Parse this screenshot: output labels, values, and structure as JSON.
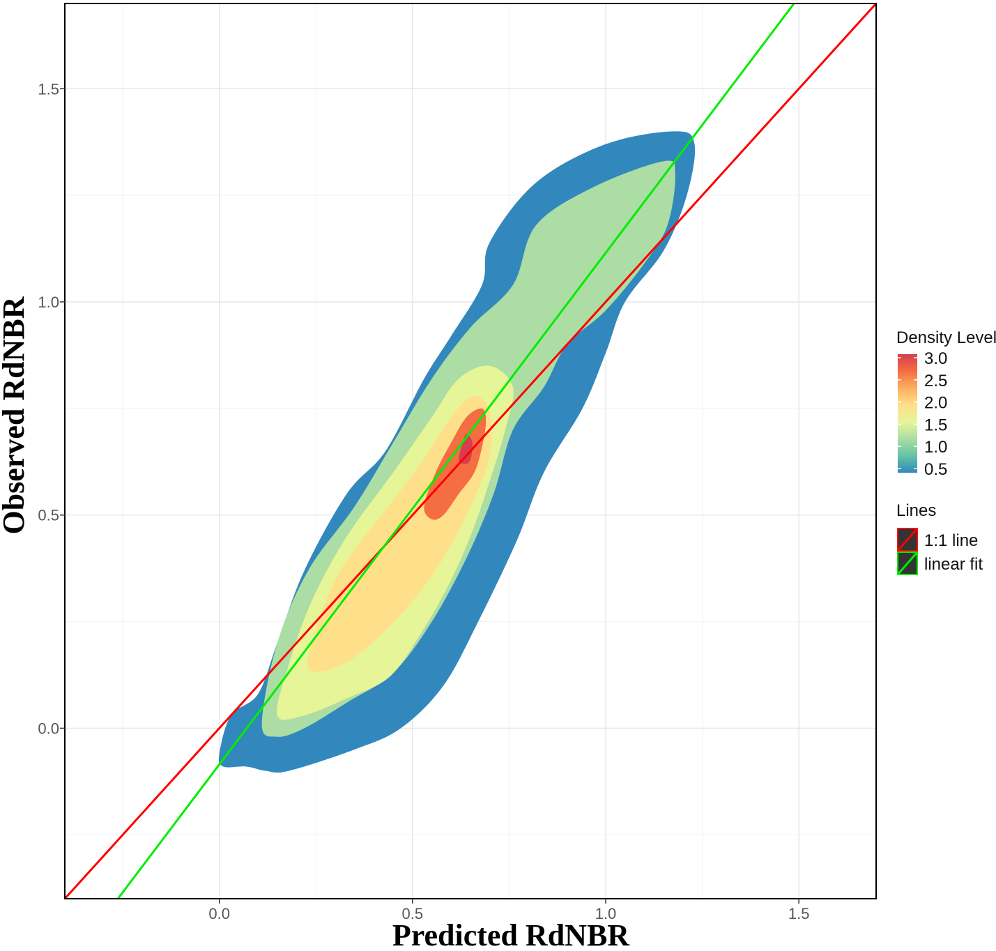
{
  "chart_data": {
    "type": "density-contour",
    "title": "",
    "xlabel": "Predicted RdNBR",
    "ylabel": "Observed RdNBR",
    "xlim": [
      -0.4,
      1.7
    ],
    "ylim": [
      -0.4,
      1.7
    ],
    "x_ticks": [
      0.0,
      0.5,
      1.0,
      1.5
    ],
    "y_ticks": [
      0.0,
      0.5,
      1.0,
      1.5
    ],
    "x_tick_labels": [
      "0.0",
      "0.5",
      "1.0",
      "1.5"
    ],
    "y_tick_labels": [
      "0.0",
      "0.5",
      "1.0",
      "1.5"
    ],
    "grid": true,
    "density_legend": {
      "title": "Density Level",
      "placement": "right",
      "levels": [
        3.0,
        2.5,
        2.0,
        1.5,
        1.0,
        0.5
      ],
      "labels": [
        "3.0",
        "2.5",
        "2.0",
        "1.5",
        "1.0",
        "0.5"
      ],
      "colors": [
        "#d53e4f",
        "#f46d43",
        "#fdae61",
        "#fee08b",
        "#e6f598",
        "#abdda4",
        "#66c2a5",
        "#3288bd"
      ]
    },
    "contour_fills": {
      "level_0": "#3288bd",
      "level_1": "#abdda4",
      "level_2": "#e6f598",
      "level_3": "#fee08b",
      "level_4": "#f46d43",
      "level_5": "#d53e4f"
    },
    "lines_legend": {
      "title": "Lines",
      "placement": "right",
      "items": [
        {
          "label": "1:1 line",
          "color": "#ff0000"
        },
        {
          "label": "linear fit",
          "color": "#00ee00"
        }
      ]
    },
    "series": [
      {
        "name": "1:1 line",
        "slope": 1.0,
        "intercept": 0.0,
        "color": "#ff0000"
      },
      {
        "name": "linear fit",
        "slope": 1.2,
        "intercept": -0.085,
        "color": "#00ee00"
      }
    ],
    "contours": [
      {
        "level": 0.5,
        "color": "#3288bd",
        "points": [
          [
            0.0,
            -0.06
          ],
          [
            0.03,
            0.03
          ],
          [
            0.1,
            0.08
          ],
          [
            0.15,
            0.2
          ],
          [
            0.22,
            0.37
          ],
          [
            0.33,
            0.55
          ],
          [
            0.43,
            0.65
          ],
          [
            0.53,
            0.82
          ],
          [
            0.6,
            0.92
          ],
          [
            0.68,
            1.04
          ],
          [
            0.7,
            1.14
          ],
          [
            0.82,
            1.28
          ],
          [
            1.0,
            1.37
          ],
          [
            1.18,
            1.4
          ],
          [
            1.23,
            1.37
          ],
          [
            1.21,
            1.25
          ],
          [
            1.15,
            1.12
          ],
          [
            1.05,
            1.0
          ],
          [
            1.0,
            0.88
          ],
          [
            0.94,
            0.75
          ],
          [
            0.84,
            0.6
          ],
          [
            0.77,
            0.44
          ],
          [
            0.67,
            0.25
          ],
          [
            0.58,
            0.1
          ],
          [
            0.47,
            0.0
          ],
          [
            0.35,
            -0.05
          ],
          [
            0.18,
            -0.1
          ],
          [
            0.12,
            -0.1
          ],
          [
            0.07,
            -0.09
          ],
          [
            0.01,
            -0.09
          ]
        ]
      },
      {
        "level": 1.0,
        "color": "#abdda4",
        "points": [
          [
            0.11,
            0.01
          ],
          [
            0.15,
            0.2
          ],
          [
            0.23,
            0.37
          ],
          [
            0.35,
            0.52
          ],
          [
            0.45,
            0.67
          ],
          [
            0.55,
            0.82
          ],
          [
            0.65,
            0.94
          ],
          [
            0.76,
            1.04
          ],
          [
            0.82,
            1.18
          ],
          [
            0.97,
            1.27
          ],
          [
            1.15,
            1.33
          ],
          [
            1.18,
            1.3
          ],
          [
            1.16,
            1.18
          ],
          [
            1.1,
            1.09
          ],
          [
            1.0,
            0.98
          ],
          [
            0.9,
            0.9
          ],
          [
            0.84,
            0.8
          ],
          [
            0.76,
            0.7
          ],
          [
            0.71,
            0.55
          ],
          [
            0.64,
            0.4
          ],
          [
            0.55,
            0.25
          ],
          [
            0.45,
            0.13
          ],
          [
            0.33,
            0.06
          ],
          [
            0.22,
            0.0
          ],
          [
            0.15,
            -0.02
          ]
        ]
      },
      {
        "level": 1.5,
        "color": "#e6f598",
        "points": [
          [
            0.15,
            0.03
          ],
          [
            0.18,
            0.15
          ],
          [
            0.24,
            0.3
          ],
          [
            0.33,
            0.45
          ],
          [
            0.45,
            0.6
          ],
          [
            0.55,
            0.73
          ],
          [
            0.62,
            0.82
          ],
          [
            0.7,
            0.85
          ],
          [
            0.76,
            0.8
          ],
          [
            0.74,
            0.7
          ],
          [
            0.7,
            0.58
          ],
          [
            0.65,
            0.45
          ],
          [
            0.59,
            0.33
          ],
          [
            0.52,
            0.22
          ],
          [
            0.44,
            0.12
          ],
          [
            0.33,
            0.07
          ],
          [
            0.22,
            0.03
          ]
        ]
      },
      {
        "level": 2.0,
        "color": "#fee08b",
        "points": [
          [
            0.23,
            0.14
          ],
          [
            0.26,
            0.26
          ],
          [
            0.32,
            0.38
          ],
          [
            0.42,
            0.5
          ],
          [
            0.52,
            0.62
          ],
          [
            0.6,
            0.73
          ],
          [
            0.66,
            0.78
          ],
          [
            0.7,
            0.74
          ],
          [
            0.7,
            0.64
          ],
          [
            0.66,
            0.54
          ],
          [
            0.6,
            0.43
          ],
          [
            0.52,
            0.32
          ],
          [
            0.42,
            0.22
          ],
          [
            0.32,
            0.15
          ]
        ]
      },
      {
        "level": 2.5,
        "color": "#f46d43",
        "points": [
          [
            0.53,
            0.52
          ],
          [
            0.56,
            0.6
          ],
          [
            0.6,
            0.67
          ],
          [
            0.64,
            0.73
          ],
          [
            0.68,
            0.75
          ],
          [
            0.69,
            0.72
          ],
          [
            0.68,
            0.66
          ],
          [
            0.66,
            0.6
          ],
          [
            0.62,
            0.55
          ],
          [
            0.58,
            0.5
          ],
          [
            0.55,
            0.49
          ]
        ]
      },
      {
        "level": 3.0,
        "color": "#d53e4f",
        "points": [
          [
            0.62,
            0.63
          ],
          [
            0.63,
            0.67
          ],
          [
            0.64,
            0.69
          ],
          [
            0.655,
            0.67
          ],
          [
            0.65,
            0.63
          ],
          [
            0.635,
            0.62
          ]
        ]
      }
    ]
  }
}
